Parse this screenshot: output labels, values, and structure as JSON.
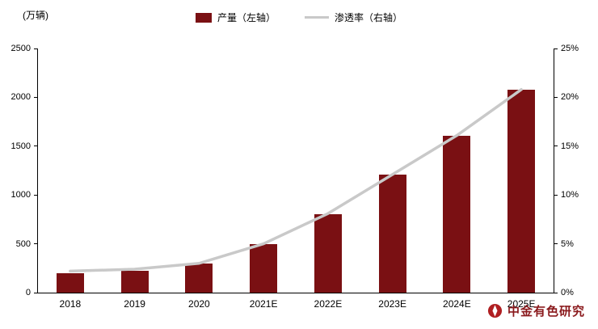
{
  "chart": {
    "unit_label": "(万辆)",
    "legend": [
      {
        "label": "产量（左轴）"
      },
      {
        "label": "渗透率（右轴）"
      }
    ],
    "watermark_text": "中金有色研究"
  },
  "chart_data": {
    "type": "bar",
    "title": "",
    "categories": [
      "2018",
      "2019",
      "2020",
      "2021E",
      "2022E",
      "2023E",
      "2024E",
      "2025E"
    ],
    "series": [
      {
        "name": "产量（左轴）",
        "type": "bar",
        "axis": "left",
        "color": "#7a1013",
        "values": [
          200,
          220,
          300,
          500,
          800,
          1210,
          1610,
          2080
        ]
      },
      {
        "name": "渗透率（右轴）",
        "type": "line",
        "axis": "right",
        "color": "#c9c9c9",
        "values": [
          2.2,
          2.4,
          3.0,
          5.0,
          8.1,
          12.1,
          16.1,
          20.8
        ]
      }
    ],
    "left_axis": {
      "unit": "(万辆)",
      "min": 0,
      "max": 2500,
      "ticks": [
        0,
        500,
        1000,
        1500,
        2000,
        2500
      ]
    },
    "right_axis": {
      "min": 0,
      "max": 25,
      "tick_labels": [
        "0%",
        "5%",
        "10%",
        "15%",
        "20%",
        "25%"
      ]
    },
    "grid": false,
    "legend_position": "top-center"
  }
}
